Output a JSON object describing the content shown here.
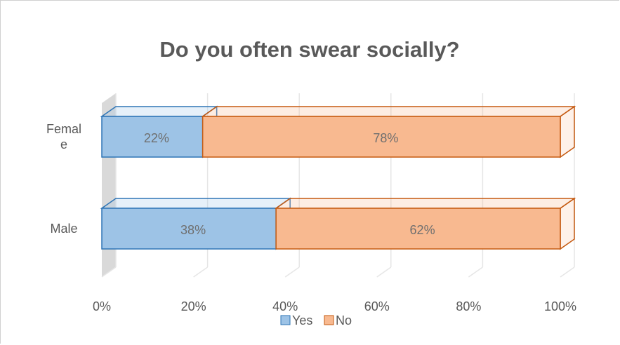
{
  "chart_data": {
    "type": "bar",
    "orientation": "horizontal",
    "stacked": "percent",
    "style": "3d",
    "title": "Do you often swear socially?",
    "categories": [
      {
        "name": "Female",
        "lines": [
          "Femal",
          "e"
        ]
      },
      {
        "name": "Male",
        "lines": [
          "Male"
        ]
      }
    ],
    "series": [
      {
        "name": "Yes",
        "values": [
          22,
          38
        ],
        "labels": [
          "22%",
          "38%"
        ],
        "color": "#9dc3e6",
        "edge": "#2e75b6"
      },
      {
        "name": "No",
        "values": [
          78,
          62
        ],
        "labels": [
          "78%",
          "62%"
        ],
        "color": "#f8b990",
        "edge": "#c55a11"
      }
    ],
    "xlim": [
      0,
      100
    ],
    "x_ticks": [
      "0%",
      "20%",
      "40%",
      "60%",
      "80%",
      "100%"
    ],
    "grid": true,
    "legend_position": "bottom"
  }
}
